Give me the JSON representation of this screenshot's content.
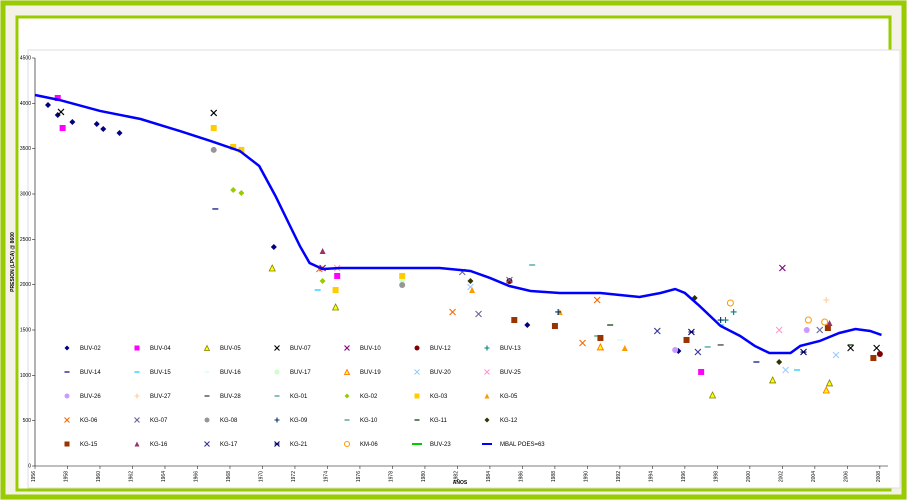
{
  "chart_data": {
    "type": "scatter",
    "x_label": "AÑOS",
    "y_label": "PRESION (LPCA) @ 8600",
    "xlim": [
      1956,
      2008.5
    ],
    "xticks": [
      1956,
      1958,
      1960,
      1962,
      1964,
      1966,
      1968,
      1970,
      1972,
      1974,
      1976,
      1978,
      1980,
      1982,
      1984,
      1986,
      1988,
      1990,
      1992,
      1994,
      1996,
      1998,
      2000,
      2002,
      2004,
      2006,
      2008
    ],
    "ylim": [
      0,
      4500
    ],
    "yticks": [
      0,
      500,
      1000,
      1500,
      2000,
      2500,
      3000,
      3500,
      4000,
      4500
    ],
    "series": [
      {
        "name": "BUV-02",
        "color": "#000080",
        "marker": "diamond",
        "x": [
          1956.8,
          1957.4,
          1958.3,
          1959.8,
          1960.2,
          1961.2,
          1970.7,
          1986.3,
          1995.6
        ],
        "values": [
          3982,
          3872,
          3794,
          3772,
          3717,
          3673,
          2416,
          1555,
          1268
        ]
      },
      {
        "name": "BUV-04",
        "color": "#ff00ff",
        "marker": "square",
        "x": [
          1957.4,
          1957.7,
          1974.6,
          1997.0
        ],
        "values": [
          4059,
          3728,
          2096,
          1037
        ]
      },
      {
        "name": "BUV-05",
        "color": "#808000",
        "marker": "triangle",
        "x": [
          1970.6,
          1974.5,
          1997.7,
          2001.4,
          2004.9
        ],
        "values": [
          2184,
          1754,
          783,
          949,
          916
        ]
      },
      {
        "name": "BUV-07",
        "color": "#000000",
        "marker": "x",
        "x": [
          1967.0,
          1957.6,
          2006.2,
          2007.8
        ],
        "values": [
          3894,
          3905,
          1302,
          1302
        ]
      },
      {
        "name": "BUV-10",
        "color": "#800080",
        "marker": "x",
        "x": [
          2002.0,
          1973.7
        ],
        "values": [
          2184,
          2184
        ]
      },
      {
        "name": "BUV-12",
        "color": "#800000",
        "marker": "circle",
        "x": [
          1985.2,
          2008.0
        ],
        "values": [
          2041,
          1235
        ]
      },
      {
        "name": "BUV-13",
        "color": "#008080",
        "marker": "plus",
        "x": [
          1999.0,
          1998.5
        ],
        "values": [
          1699,
          1610
        ]
      },
      {
        "name": "BUV-14",
        "color": "#000080",
        "marker": "dash",
        "x": [
          1967.1,
          2000.4
        ],
        "values": [
          2835,
          1147
        ]
      },
      {
        "name": "BUV-15",
        "color": "#00ccff",
        "marker": "dash",
        "x": [
          1973.4,
          1998.2,
          2002.9
        ],
        "values": [
          1941,
          1555,
          1059
        ]
      },
      {
        "name": "BUV-16",
        "color": "#ccffff",
        "marker": "dash",
        "x": [
          1992.0
        ],
        "values": [
          1390
        ]
      },
      {
        "name": "BUV-17",
        "color": "#ccffcc",
        "marker": "circle",
        "x": [
          1978.6
        ],
        "values": [
          2052
        ]
      },
      {
        "name": "BUV-19",
        "color": "#ff6600",
        "marker": "triangle",
        "x": [
          1990.8,
          2004.7
        ],
        "values": [
          1313,
          838
        ]
      },
      {
        "name": "BUV-20",
        "color": "#99ccff",
        "marker": "x",
        "x": [
          1982.8,
          2002.2,
          2005.3
        ],
        "values": [
          1974,
          1059,
          1224
        ]
      },
      {
        "name": "BUV-25",
        "color": "#ff99cc",
        "marker": "x",
        "x": [
          1974.6,
          2001.8
        ],
        "values": [
          2184,
          1500
        ]
      },
      {
        "name": "BUV-26",
        "color": "#cc99ff",
        "marker": "circle",
        "x": [
          1995.4,
          2003.5
        ],
        "values": [
          1279,
          1500
        ]
      },
      {
        "name": "BUV-27",
        "color": "#ffcc99",
        "marker": "plus",
        "x": [
          2004.7
        ],
        "values": [
          1831
        ]
      },
      {
        "name": "BUV-28",
        "color": "#333333",
        "marker": "dash",
        "x": [
          1998.2
        ],
        "values": [
          1335
        ]
      },
      {
        "name": "KG-01",
        "color": "#339999",
        "marker": "dash",
        "x": [
          1986.6,
          1997.4
        ],
        "values": [
          2217,
          1313
        ]
      },
      {
        "name": "KG-02",
        "color": "#99cc00",
        "marker": "diamond",
        "x": [
          1968.2,
          1968.7,
          1973.7
        ],
        "values": [
          3044,
          3011,
          2041
        ]
      },
      {
        "name": "KG-03",
        "color": "#ffcc00",
        "marker": "square",
        "x": [
          1967.0,
          1968.2,
          1968.7,
          1978.6,
          1974.5
        ],
        "values": [
          3728,
          3519,
          3486,
          2096,
          1941
        ]
      },
      {
        "name": "KG-05",
        "color": "#ff9900",
        "marker": "trianglefill",
        "x": [
          1982.9,
          1988.3,
          1992.3
        ],
        "values": [
          1941,
          1699,
          1302
        ]
      },
      {
        "name": "KG-06",
        "color": "#ff6600",
        "marker": "x",
        "x": [
          1973.5,
          1981.7,
          1990.6,
          1989.7
        ],
        "values": [
          2173,
          1699,
          1831,
          1357
        ]
      },
      {
        "name": "KG-07",
        "color": "#666699",
        "marker": "x",
        "x": [
          1982.3,
          1983.3,
          1985.2,
          2004.3
        ],
        "values": [
          2140,
          1677,
          2052,
          1500
        ]
      },
      {
        "name": "KG-08",
        "color": "#969696",
        "marker": "circle",
        "x": [
          1967.0,
          1978.6
        ],
        "values": [
          3486,
          1996
        ]
      },
      {
        "name": "KG-09",
        "color": "#003366",
        "marker": "plus",
        "x": [
          1988.2,
          1998.2
        ],
        "values": [
          1699,
          1610
        ]
      },
      {
        "name": "KG-10",
        "color": "#339966",
        "marker": "dash",
        "x": [
          1990.6
        ],
        "values": [
          1434
        ]
      },
      {
        "name": "KG-11",
        "color": "#003300",
        "marker": "dash",
        "x": [
          1991.4,
          2006.2
        ],
        "values": [
          1555,
          1335
        ]
      },
      {
        "name": "KG-12",
        "color": "#333300",
        "marker": "diamond",
        "x": [
          1982.8,
          1996.6,
          2001.8
        ],
        "values": [
          2041,
          1853,
          1147
        ]
      },
      {
        "name": "KG-15",
        "color": "#993300",
        "marker": "square",
        "x": [
          1985.5,
          1988.0,
          1990.8,
          1996.1,
          2004.8,
          2007.6
        ],
        "values": [
          1610,
          1544,
          1412,
          1390,
          1522,
          1191
        ]
      },
      {
        "name": "KG-16",
        "color": "#993366",
        "marker": "trianglefill",
        "x": [
          1973.7,
          2004.9
        ],
        "values": [
          2371,
          1577
        ]
      },
      {
        "name": "KG-17",
        "color": "#333399",
        "marker": "x",
        "x": [
          1994.3,
          1996.8
        ],
        "values": [
          1489,
          1257
        ]
      },
      {
        "name": "KG-21",
        "color": "#000066",
        "marker": "star",
        "x": [
          1996.4,
          2003.3
        ],
        "values": [
          1478,
          1257
        ]
      },
      {
        "name": "KM-06",
        "color": "#ff9900",
        "marker": "ring",
        "x": [
          1998.8,
          2003.6,
          2004.6
        ],
        "values": [
          1798,
          1610,
          1588
        ]
      },
      {
        "name": "BUV-23",
        "color": "#00cc00",
        "marker": "line",
        "x": [],
        "values": []
      },
      {
        "name": "MBAL POES=63",
        "color": "#0000ff",
        "marker": "line",
        "x": [
          1956.0,
          1957.5,
          1960.0,
          1962.5,
          1964.9,
          1966.8,
          1968.6,
          1969.8,
          1970.8,
          1971.7,
          1972.3,
          1972.9,
          1973.7,
          1974.8,
          1980.9,
          1982.8,
          1984.0,
          1985.2,
          1986.5,
          1988.3,
          1990.8,
          1992.0,
          1993.2,
          1994.5,
          1995.4,
          1996.0,
          1996.9,
          1998.2,
          1999.4,
          2000.3,
          2001.2,
          2002.5,
          2003.1,
          2004.3,
          2005.5,
          2006.5,
          2007.4,
          2008.1
        ],
        "values": [
          4092,
          4037,
          3916,
          3827,
          3695,
          3585,
          3475,
          3309,
          2978,
          2647,
          2427,
          2239,
          2173,
          2184,
          2184,
          2151,
          2074,
          1985,
          1930,
          1908,
          1908,
          1886,
          1864,
          1908,
          1952,
          1908,
          1765,
          1544,
          1434,
          1324,
          1246,
          1246,
          1324,
          1379,
          1467,
          1511,
          1489,
          1445
        ]
      }
    ]
  }
}
